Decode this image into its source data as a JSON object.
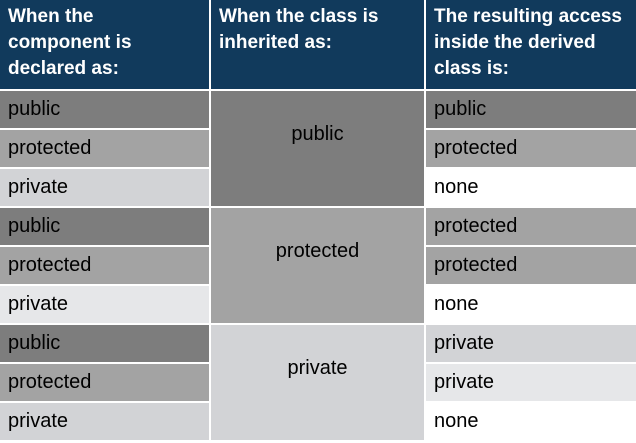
{
  "headers": [
    "When the component is declared as:",
    "When the class is inherited as:",
    "The resulting access inside the derived class is:"
  ],
  "groups": [
    {
      "inherited_as": "public",
      "rows": [
        {
          "declared": "public",
          "result": "public"
        },
        {
          "declared": "protected",
          "result": "protected"
        },
        {
          "declared": "private",
          "result": "none"
        }
      ]
    },
    {
      "inherited_as": "protected",
      "rows": [
        {
          "declared": "public",
          "result": "protected"
        },
        {
          "declared": "protected",
          "result": "protected"
        },
        {
          "declared": "private",
          "result": "none"
        }
      ]
    },
    {
      "inherited_as": "private",
      "rows": [
        {
          "declared": "public",
          "result": "private"
        },
        {
          "declared": "protected",
          "result": "private"
        },
        {
          "declared": "private",
          "result": "none"
        }
      ]
    }
  ],
  "colors": {
    "header_bg": "#113a5c",
    "header_text": "#ffffff",
    "dark_gray": "#7d7d7d",
    "medium_gray": "#a3a3a3",
    "light_gray": "#d2d3d6",
    "very_light_gray": "#e6e7e9",
    "white": "#ffffff"
  }
}
